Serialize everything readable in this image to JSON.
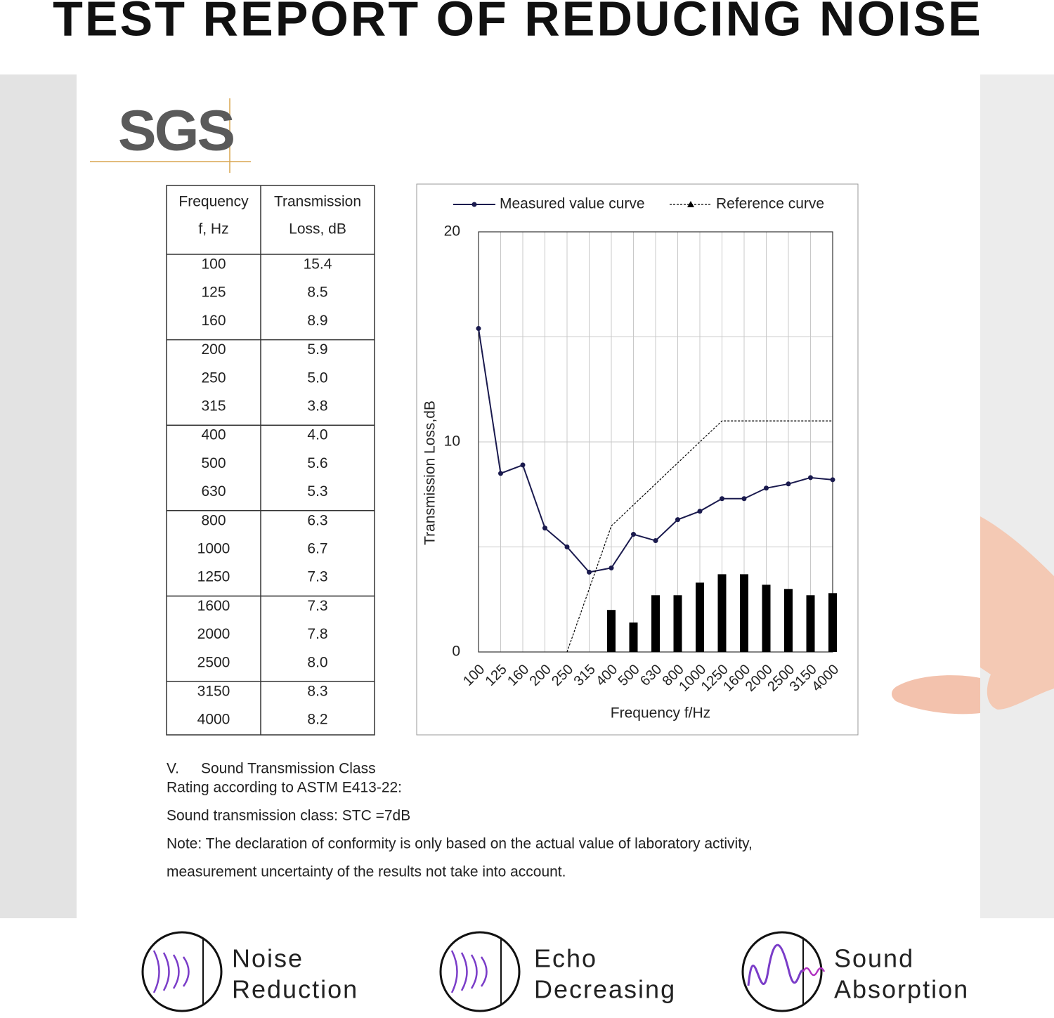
{
  "title": "TEST REPORT OF REDUCING NOISE",
  "logo": "SGS",
  "table": {
    "headers": [
      [
        "Frequency",
        "f, Hz"
      ],
      [
        "Transmission",
        "Loss, dB"
      ]
    ],
    "groups": [
      [
        [
          "100",
          "15.4"
        ],
        [
          "125",
          "8.5"
        ],
        [
          "160",
          "8.9"
        ]
      ],
      [
        [
          "200",
          "5.9"
        ],
        [
          "250",
          "5.0"
        ],
        [
          "315",
          "3.8"
        ]
      ],
      [
        [
          "400",
          "4.0"
        ],
        [
          "500",
          "5.6"
        ],
        [
          "630",
          "5.3"
        ]
      ],
      [
        [
          "800",
          "6.3"
        ],
        [
          "1000",
          "6.7"
        ],
        [
          "1250",
          "7.3"
        ]
      ],
      [
        [
          "1600",
          "7.3"
        ],
        [
          "2000",
          "7.8"
        ],
        [
          "2500",
          "8.0"
        ]
      ],
      [
        [
          "3150",
          "8.3"
        ],
        [
          "4000",
          "8.2"
        ]
      ]
    ]
  },
  "chart_data": {
    "type": "line",
    "ylabel": "Transmission Loss,dB",
    "xlabel": "Frequency f/Hz",
    "categories": [
      "100",
      "125",
      "160",
      "200",
      "250",
      "315",
      "400",
      "500",
      "630",
      "800",
      "1000",
      "1250",
      "1600",
      "2000",
      "2500",
      "3150",
      "4000"
    ],
    "series": [
      {
        "name": "Measured value curve",
        "color": "#1a1a4e",
        "style": "solid",
        "values": [
          15.4,
          8.5,
          8.9,
          5.9,
          5.0,
          3.8,
          4.0,
          5.6,
          5.3,
          6.3,
          6.7,
          7.3,
          7.3,
          7.8,
          8.0,
          8.3,
          8.2
        ]
      },
      {
        "name": "Reference curve",
        "color": "#000000",
        "style": "dotted",
        "values": [
          null,
          null,
          null,
          null,
          0,
          3,
          6,
          7,
          8,
          9,
          10,
          11,
          11,
          11,
          11,
          11,
          11
        ]
      },
      {
        "type": "bar",
        "color": "#000000",
        "values": [
          null,
          null,
          null,
          null,
          null,
          null,
          2.0,
          1.4,
          2.7,
          2.7,
          3.3,
          3.7,
          3.7,
          3.2,
          3.0,
          2.7,
          2.8
        ]
      }
    ],
    "ylim": [
      0,
      20
    ],
    "yticks": [
      0,
      10,
      20
    ],
    "ygrid": [
      0,
      5,
      10,
      15,
      20
    ],
    "grid": true,
    "legend": "top"
  },
  "notes": {
    "section_number": "V.",
    "section_title": "Sound Transmission Class",
    "lines": [
      "Rating according to ASTM E413-22:",
      "Sound transmission class: STC =7dB",
      "Note: The declaration of conformity is only based on the actual value of laboratory activity,",
      "measurement uncertainty of the results not take into account."
    ]
  },
  "features": [
    {
      "lines": [
        "Noise",
        "Reduction"
      ]
    },
    {
      "lines": [
        "Echo",
        "Decreasing"
      ]
    },
    {
      "lines": [
        "Sound",
        "Absorption"
      ]
    }
  ]
}
